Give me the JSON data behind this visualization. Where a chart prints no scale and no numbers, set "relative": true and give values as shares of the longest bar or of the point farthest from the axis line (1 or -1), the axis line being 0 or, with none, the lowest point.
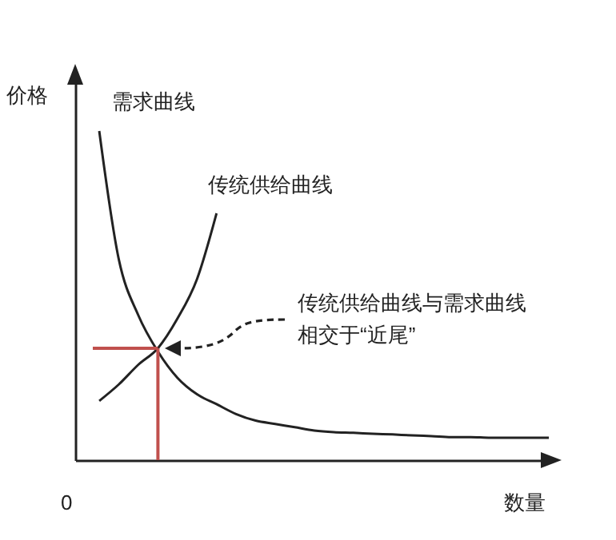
{
  "chart_data": {
    "type": "line",
    "relative": true,
    "xlabel": "数量",
    "ylabel": "价格",
    "categories": [
      null,
      null,
      null,
      null,
      null,
      null,
      null,
      null,
      null,
      null,
      null,
      null,
      null,
      null,
      null,
      null,
      null,
      null,
      null,
      null,
      null,
      null,
      null,
      null
    ],
    "series": [
      {
        "name": "需求曲线",
        "color": "#222222",
        "values": [
          1,
          0.61,
          0.44,
          0.33,
          0.25,
          0.2,
          0.17,
          0.14,
          0.12,
          0.11,
          0.1,
          0.09,
          0.085,
          0.083,
          0.08,
          0.078,
          0.075,
          0.073,
          0.07,
          0.07,
          0.068,
          0.068,
          0.068,
          0.068
        ]
      },
      {
        "name": "传统供给曲线",
        "color": "#222222",
        "values": [
          0.18,
          0.23,
          0.29,
          0.34,
          0.43,
          0.55,
          0.75,
          null,
          null,
          null,
          null,
          null,
          null,
          null,
          null,
          null,
          null,
          null,
          null,
          null,
          null,
          null,
          null,
          null
        ]
      }
    ],
    "ref_lines": [
      {
        "axis": "y",
        "value": 0.34,
        "color": "#c0504d"
      }
    ],
    "annotations": [
      "传统供给曲线与需求曲线",
      "相交于“近尾”",
      "0"
    ],
    "grid": false,
    "legend": false,
    "line_style": "solid",
    "marker": "none"
  }
}
